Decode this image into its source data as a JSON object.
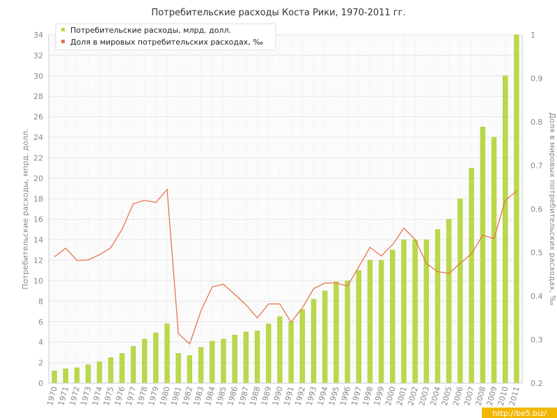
{
  "chart_data": {
    "type": "bar",
    "title": "Потребительские расходы Коста Рики, 1970-2011 гг.",
    "ylabel": "Потребительские расходы, мпрд. долл.",
    "y2label": "Доля в мировых потребительских расходах, ‰",
    "ylim": [
      0,
      34
    ],
    "y2lim": [
      0.2,
      1
    ],
    "yticks": [
      "0",
      "2",
      "4",
      "6",
      "8",
      "10",
      "12",
      "14",
      "16",
      "18",
      "20",
      "22",
      "24",
      "26",
      "28",
      "30",
      "32",
      "34"
    ],
    "y2ticks": [
      "0.2",
      "0.3",
      "0.4",
      "0.5",
      "0.6",
      "0.7",
      "0.8",
      "0.9",
      "1"
    ],
    "grid": true,
    "legend_position": "top-left",
    "categories": [
      "1970",
      "1971",
      "1972",
      "1973",
      "1974",
      "1975",
      "1976",
      "1977",
      "1978",
      "1979",
      "1980",
      "1981",
      "1982",
      "1983",
      "1984",
      "1985",
      "1986",
      "1987",
      "1988",
      "1989",
      "1990",
      "1991",
      "1992",
      "1993",
      "1994",
      "1995",
      "1996",
      "1997",
      "1998",
      "1999",
      "2000",
      "2001",
      "2002",
      "2003",
      "2004",
      "2005",
      "2006",
      "2007",
      "2008",
      "2009",
      "2010",
      "2011"
    ],
    "series": [
      {
        "name": "Потребительские расходы, млрд. долл.",
        "type": "bar",
        "axis": "left",
        "color": "#b9d94a",
        "values": [
          1.2,
          1.4,
          1.5,
          1.8,
          2.1,
          2.5,
          2.9,
          3.6,
          4.3,
          4.9,
          5.8,
          2.9,
          2.7,
          3.5,
          4.1,
          4.3,
          4.7,
          5.0,
          5.1,
          5.8,
          6.5,
          6.0,
          7.2,
          8.2,
          9.0,
          9.9,
          10.0,
          11.0,
          12.0,
          12.0,
          13.0,
          14.0,
          14.0,
          14.0,
          15.0,
          16.0,
          18.0,
          21.0,
          25.0,
          24.0,
          30.0,
          34.0
        ]
      },
      {
        "name": "Доля в мировых потребительских расходах, ‰",
        "type": "line",
        "axis": "right",
        "color": "#e8734a",
        "values": [
          0.49,
          0.51,
          0.482,
          0.483,
          0.495,
          0.511,
          0.553,
          0.612,
          0.62,
          0.615,
          0.645,
          0.314,
          0.29,
          0.366,
          0.421,
          0.427,
          0.404,
          0.38,
          0.35,
          0.382,
          0.382,
          0.34,
          0.373,
          0.417,
          0.43,
          0.43,
          0.423,
          0.467,
          0.512,
          0.492,
          0.518,
          0.556,
          0.53,
          0.475,
          0.456,
          0.452,
          0.475,
          0.497,
          0.54,
          0.532,
          0.62,
          0.641
        ]
      }
    ]
  },
  "watermark": "http://be5.biz/"
}
